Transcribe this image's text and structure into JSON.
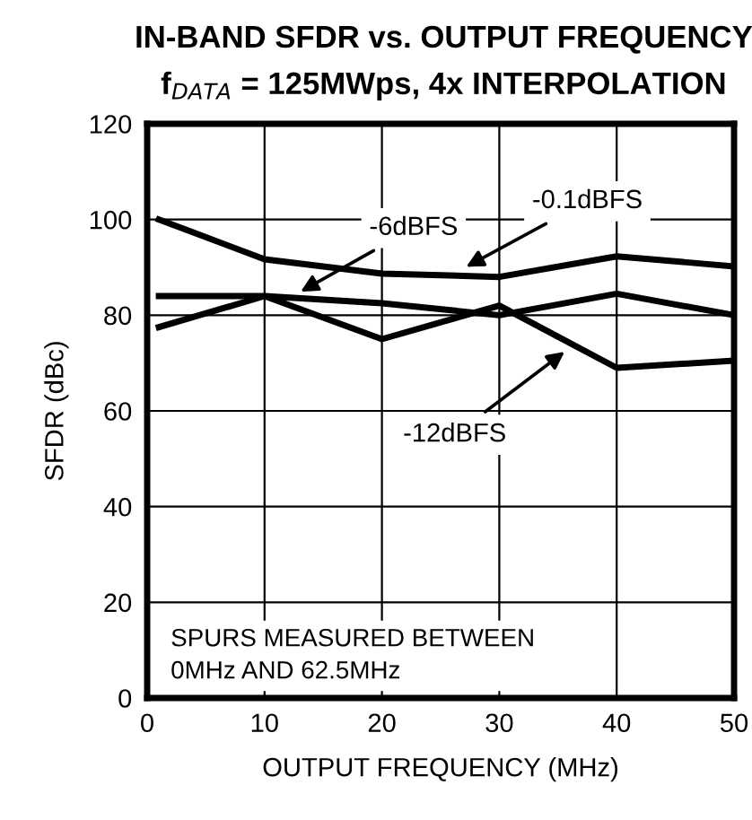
{
  "chart_data": {
    "type": "line",
    "title": "IN-BAND SFDR vs. OUTPUT FREQUENCY",
    "subtitle": "f$_{DATA}$ = 125MWps, 4x INTERPOLATION",
    "xlabel": "OUTPUT FREQUENCY (MHz)",
    "ylabel": "SFDR (dBc)",
    "x": [
      1,
      10,
      20,
      30,
      40,
      50
    ],
    "series": [
      {
        "color": "#000000",
        "values": [
          100,
          91.7,
          88.7,
          88,
          92.3,
          90.2
        ]
      },
      {
        "color": "#000000",
        "values": [
          84,
          84,
          82.5,
          80,
          84.5,
          80
        ]
      },
      {
        "color": "#000000",
        "values": [
          77.5,
          84,
          75,
          82,
          69,
          70.5
        ]
      }
    ],
    "annotations": [
      {
        "text": "-0.1dBFS",
        "x": 26.8,
        "y": 89.6
      },
      {
        "text": "-6dBFS",
        "x": 12.7,
        "y": 84.4
      },
      {
        "text": "-12dBFS",
        "x": 35.9,
        "y": 73
      },
      "SPURS MEASURED BETWEEN\n0MHz AND 62.5MHz"
    ],
    "xlim": [
      0,
      50
    ],
    "xticks": [
      0,
      10,
      20,
      30,
      40,
      50
    ],
    "ylim": [
      0,
      120
    ],
    "yticks": [
      0,
      20,
      40,
      60,
      80,
      100,
      120
    ],
    "grid": true,
    "marker": "none",
    "line_style": "solid",
    "legend": false
  }
}
